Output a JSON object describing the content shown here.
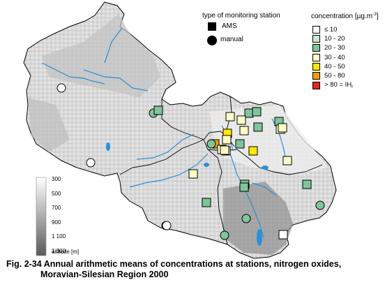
{
  "legend_station_type": {
    "title": "type of monitoring station",
    "ams_label": "AMS",
    "manual_label": "manual"
  },
  "legend_concentration": {
    "title_prefix": "concentration [µg.m",
    "title_sup": "-3",
    "title_suffix": "]",
    "classes": [
      {
        "label": "≤ 10",
        "color": "#ffffff"
      },
      {
        "label": "10 - 20",
        "color": "#cfe6d0"
      },
      {
        "label": "20 - 30",
        "color": "#80c49a"
      },
      {
        "label": "30 - 40",
        "color": "#ffffc8"
      },
      {
        "label": "40 - 50",
        "color": "#ffe800"
      },
      {
        "label": "50 - 80",
        "color": "#f0a000"
      },
      {
        "label": "> 80 = IH",
        "sub": "r",
        "color": "#e0281e"
      }
    ]
  },
  "altitude_legend": {
    "ticks": [
      "300",
      "500",
      "700",
      "900",
      "1 100",
      "1 300"
    ],
    "label": "altitude [m]"
  },
  "caption": {
    "line1": "Fig. 2-34  Annual arithmetic means of concentrations at stations, nitrogen oxides,",
    "line2": "Moravian-Silesian Region 2000"
  },
  "stations": [
    {
      "type": "manual",
      "class": 0
    },
    {
      "type": "manual",
      "class": 0
    },
    {
      "type": "manual",
      "class": 2
    },
    {
      "type": "AMS",
      "class": 2
    },
    {
      "type": "AMS",
      "class": 3
    },
    {
      "type": "AMS",
      "class": 2
    },
    {
      "type": "AMS",
      "class": 2
    },
    {
      "type": "AMS",
      "class": 3
    },
    {
      "type": "AMS",
      "class": 3
    },
    {
      "type": "AMS",
      "class": 2
    },
    {
      "type": "AMS",
      "class": 2
    },
    {
      "type": "AMS",
      "class": 3
    },
    {
      "type": "AMS",
      "class": 3
    },
    {
      "type": "AMS",
      "class": 4
    },
    {
      "type": "AMS",
      "class": 3
    },
    {
      "type": "AMS",
      "class": 5
    },
    {
      "type": "manual",
      "class": 2
    },
    {
      "type": "AMS",
      "class": 3
    },
    {
      "type": "AMS",
      "class": 2
    },
    {
      "type": "AMS",
      "class": 4
    },
    {
      "type": "AMS",
      "class": 3
    },
    {
      "type": "AMS",
      "class": 3
    },
    {
      "type": "AMS",
      "class": 2
    },
    {
      "type": "manual",
      "class": 2
    },
    {
      "type": "AMS",
      "class": 2
    },
    {
      "type": "AMS",
      "class": 2
    },
    {
      "type": "AMS",
      "class": 2
    },
    {
      "type": "AMS",
      "class": 3
    },
    {
      "type": "manual",
      "class": 2
    },
    {
      "type": "manual",
      "class": 2
    },
    {
      "type": "manual",
      "class": 2
    },
    {
      "type": "manual",
      "class": 0
    },
    {
      "type": "AMS",
      "class": 0
    },
    {
      "type": "AMS",
      "class": 3
    }
  ]
}
